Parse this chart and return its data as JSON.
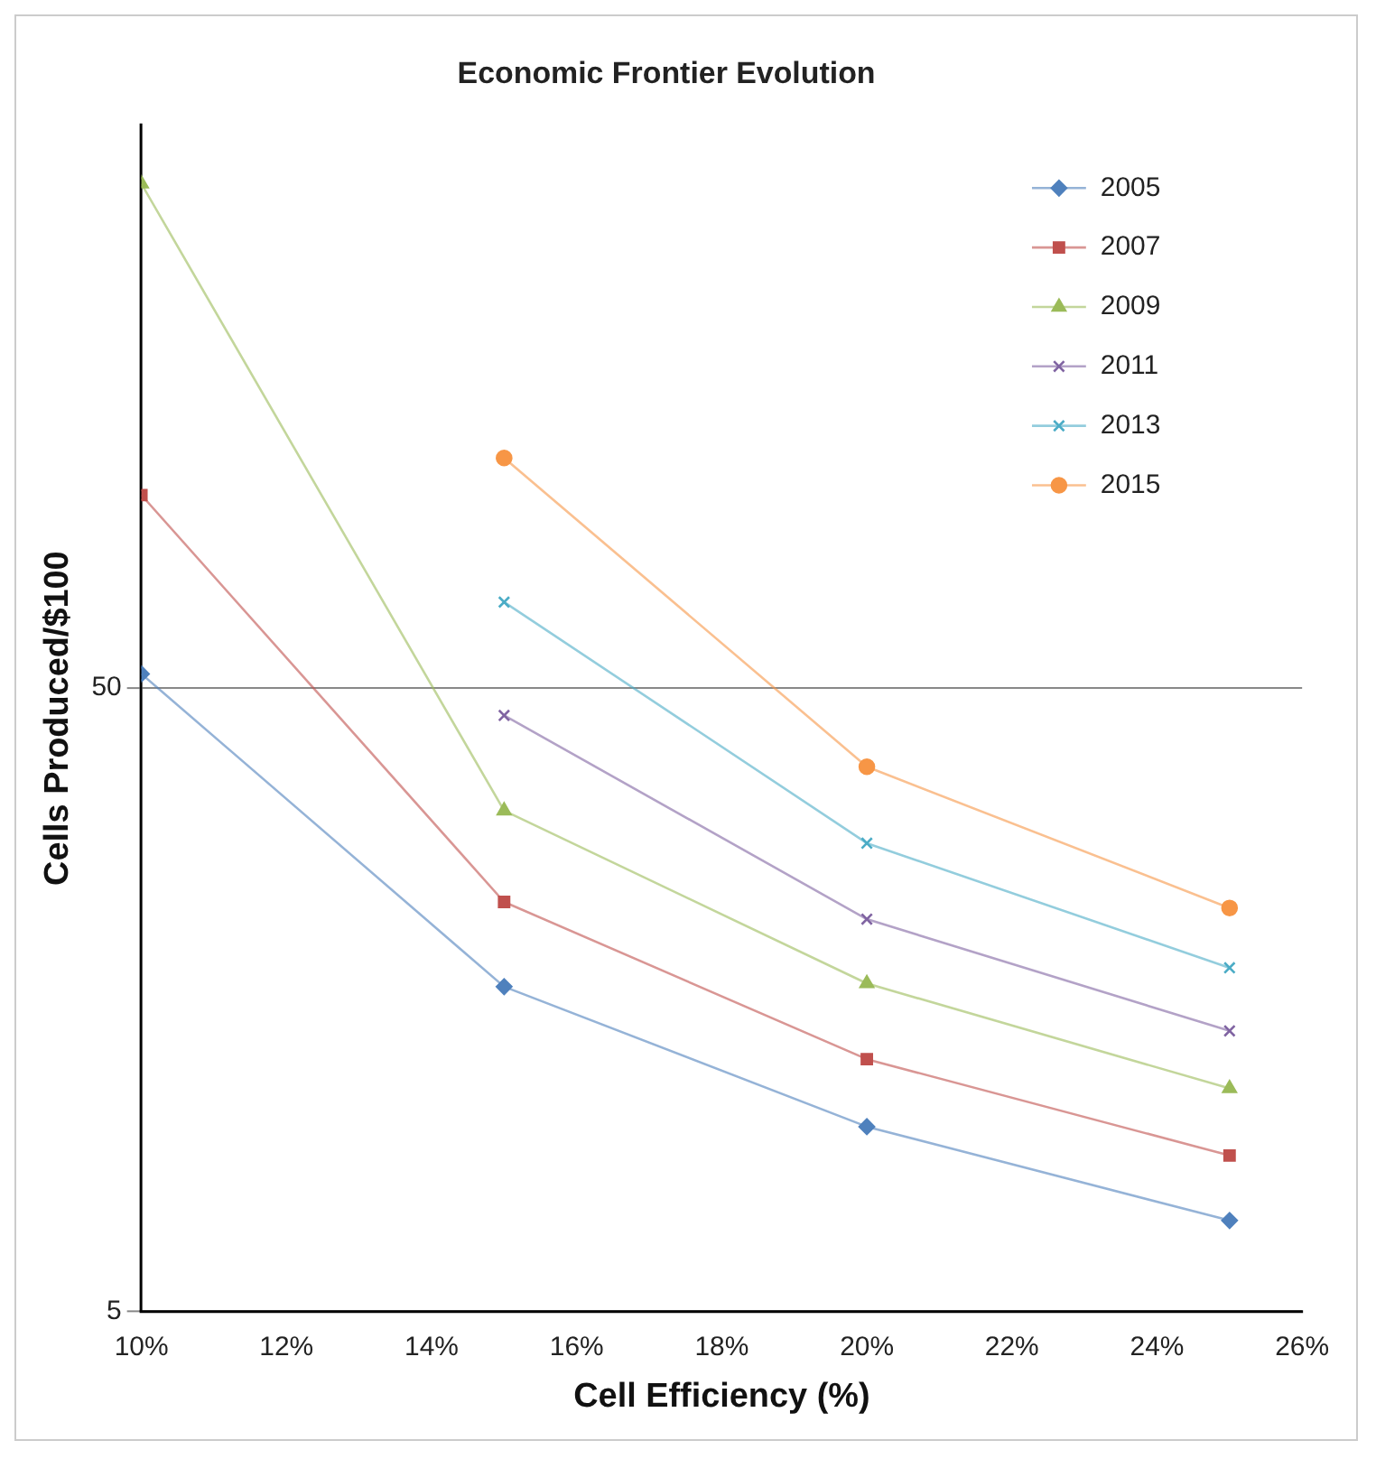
{
  "chart_data": {
    "type": "line",
    "title": "Economic Frontier Evolution",
    "xlabel": "Cell Efficiency (%)",
    "ylabel": "Cells Produced/$100",
    "x": [
      10,
      15,
      20,
      25
    ],
    "series": [
      {
        "name": "2005",
        "color": "#4f81bd",
        "marker": "diamond",
        "values": [
          52.7,
          16.6,
          9.9,
          7.0
        ]
      },
      {
        "name": "2007",
        "color": "#c0504d",
        "marker": "square",
        "values": [
          102,
          22.7,
          12.7,
          8.9
        ]
      },
      {
        "name": "2009",
        "color": "#9bbb59",
        "marker": "triangle",
        "values": [
          322,
          31.8,
          16.8,
          11.4
        ]
      },
      {
        "name": "2011",
        "color": "#8064a2",
        "marker": "cross",
        "values": [
          null,
          45.2,
          21.3,
          14.1
        ]
      },
      {
        "name": "2013",
        "color": "#4bacc6",
        "marker": "cross",
        "values": [
          null,
          68.7,
          28.2,
          17.8
        ]
      },
      {
        "name": "2015",
        "color": "#f79646",
        "marker": "circle",
        "values": [
          null,
          117,
          37.4,
          22.2
        ]
      }
    ],
    "log": "y",
    "xlim": [
      10,
      26
    ],
    "xticks": [
      {
        "value": 10,
        "label": "10%"
      },
      {
        "value": 12,
        "label": "12%"
      },
      {
        "value": 14,
        "label": "14%"
      },
      {
        "value": 16,
        "label": "16%"
      },
      {
        "value": 18,
        "label": "18%"
      },
      {
        "value": 20,
        "label": "20%"
      },
      {
        "value": 22,
        "label": "22%"
      },
      {
        "value": 24,
        "label": "24%"
      },
      {
        "value": 26,
        "label": "26%"
      }
    ],
    "ylim": [
      5,
      400
    ],
    "yticks": [
      5,
      50
    ],
    "grid": "y",
    "legend": "top right"
  }
}
